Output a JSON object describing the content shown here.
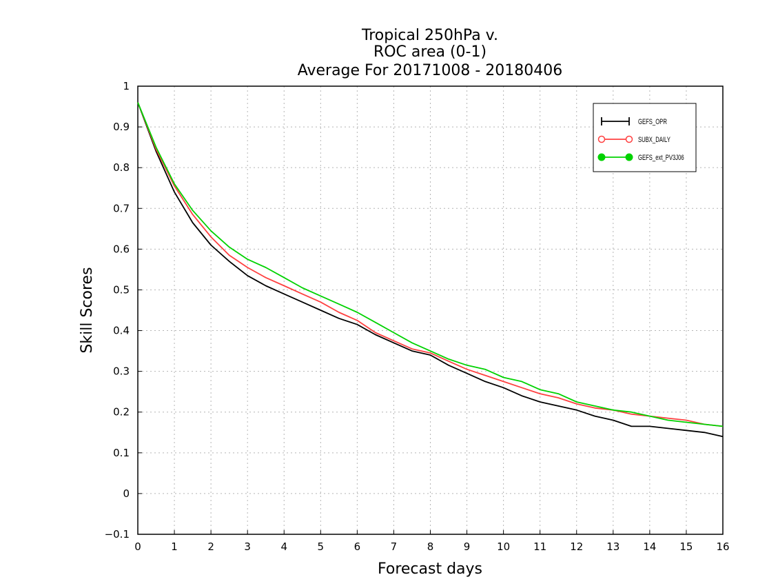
{
  "chart_data": {
    "type": "line",
    "title_lines": [
      "Tropical 250hPa v.",
      "ROC area (0-1)",
      "Average For 20171008 - 20180406"
    ],
    "xlabel": "Forecast days",
    "ylabel": "Skill Scores",
    "xlim": [
      0,
      16
    ],
    "ylim": [
      -0.1,
      1
    ],
    "x_ticks": [
      "0",
      "1",
      "2",
      "3",
      "4",
      "5",
      "6",
      "7",
      "8",
      "9",
      "10",
      "11",
      "12",
      "13",
      "14",
      "15",
      "16"
    ],
    "y_ticks": [
      "−0.1",
      "0",
      "0.1",
      "0.2",
      "0.3",
      "0.4",
      "0.5",
      "0.6",
      "0.7",
      "0.8",
      "0.9",
      "1"
    ],
    "grid": true,
    "legend_position": "top-right",
    "x": [
      0,
      0.5,
      1,
      1.5,
      2,
      2.5,
      3,
      3.5,
      4,
      4.5,
      5,
      5.5,
      6,
      6.5,
      7,
      7.5,
      8,
      8.5,
      9,
      9.5,
      10,
      10.5,
      11,
      11.5,
      12,
      12.5,
      13,
      13.5,
      14,
      14.5,
      15,
      15.5,
      16
    ],
    "series": [
      {
        "name": "GEFS_OPR",
        "color": "#000000",
        "marker": "plus",
        "values": [
          0.96,
          0.84,
          0.74,
          0.665,
          0.61,
          0.57,
          0.535,
          0.51,
          0.49,
          0.47,
          0.45,
          0.43,
          0.415,
          0.39,
          0.37,
          0.35,
          0.34,
          0.315,
          0.295,
          0.275,
          0.26,
          0.24,
          0.225,
          0.215,
          0.205,
          0.19,
          0.18,
          0.165,
          0.165,
          0.16,
          0.155,
          0.15,
          0.14
        ]
      },
      {
        "name": "SUBX_DAILY",
        "color": "#ff4040",
        "marker": "open-circle",
        "values": [
          0.96,
          0.845,
          0.755,
          0.685,
          0.63,
          0.585,
          0.555,
          0.53,
          0.51,
          0.49,
          0.47,
          0.445,
          0.425,
          0.395,
          0.375,
          0.355,
          0.345,
          0.325,
          0.305,
          0.29,
          0.275,
          0.26,
          0.245,
          0.235,
          0.22,
          0.21,
          0.205,
          0.195,
          0.19,
          0.185,
          0.18,
          0.17,
          0.165
        ]
      },
      {
        "name": "GEFS_ext_PV3J06",
        "color": "#00d200",
        "marker": "filled-circle",
        "values": [
          0.96,
          0.85,
          0.76,
          0.695,
          0.645,
          0.605,
          0.575,
          0.555,
          0.53,
          0.505,
          0.485,
          0.465,
          0.445,
          0.42,
          0.395,
          0.37,
          0.35,
          0.33,
          0.315,
          0.305,
          0.285,
          0.275,
          0.255,
          0.245,
          0.225,
          0.215,
          0.205,
          0.2,
          0.19,
          0.18,
          0.175,
          0.17,
          0.165
        ]
      }
    ]
  }
}
